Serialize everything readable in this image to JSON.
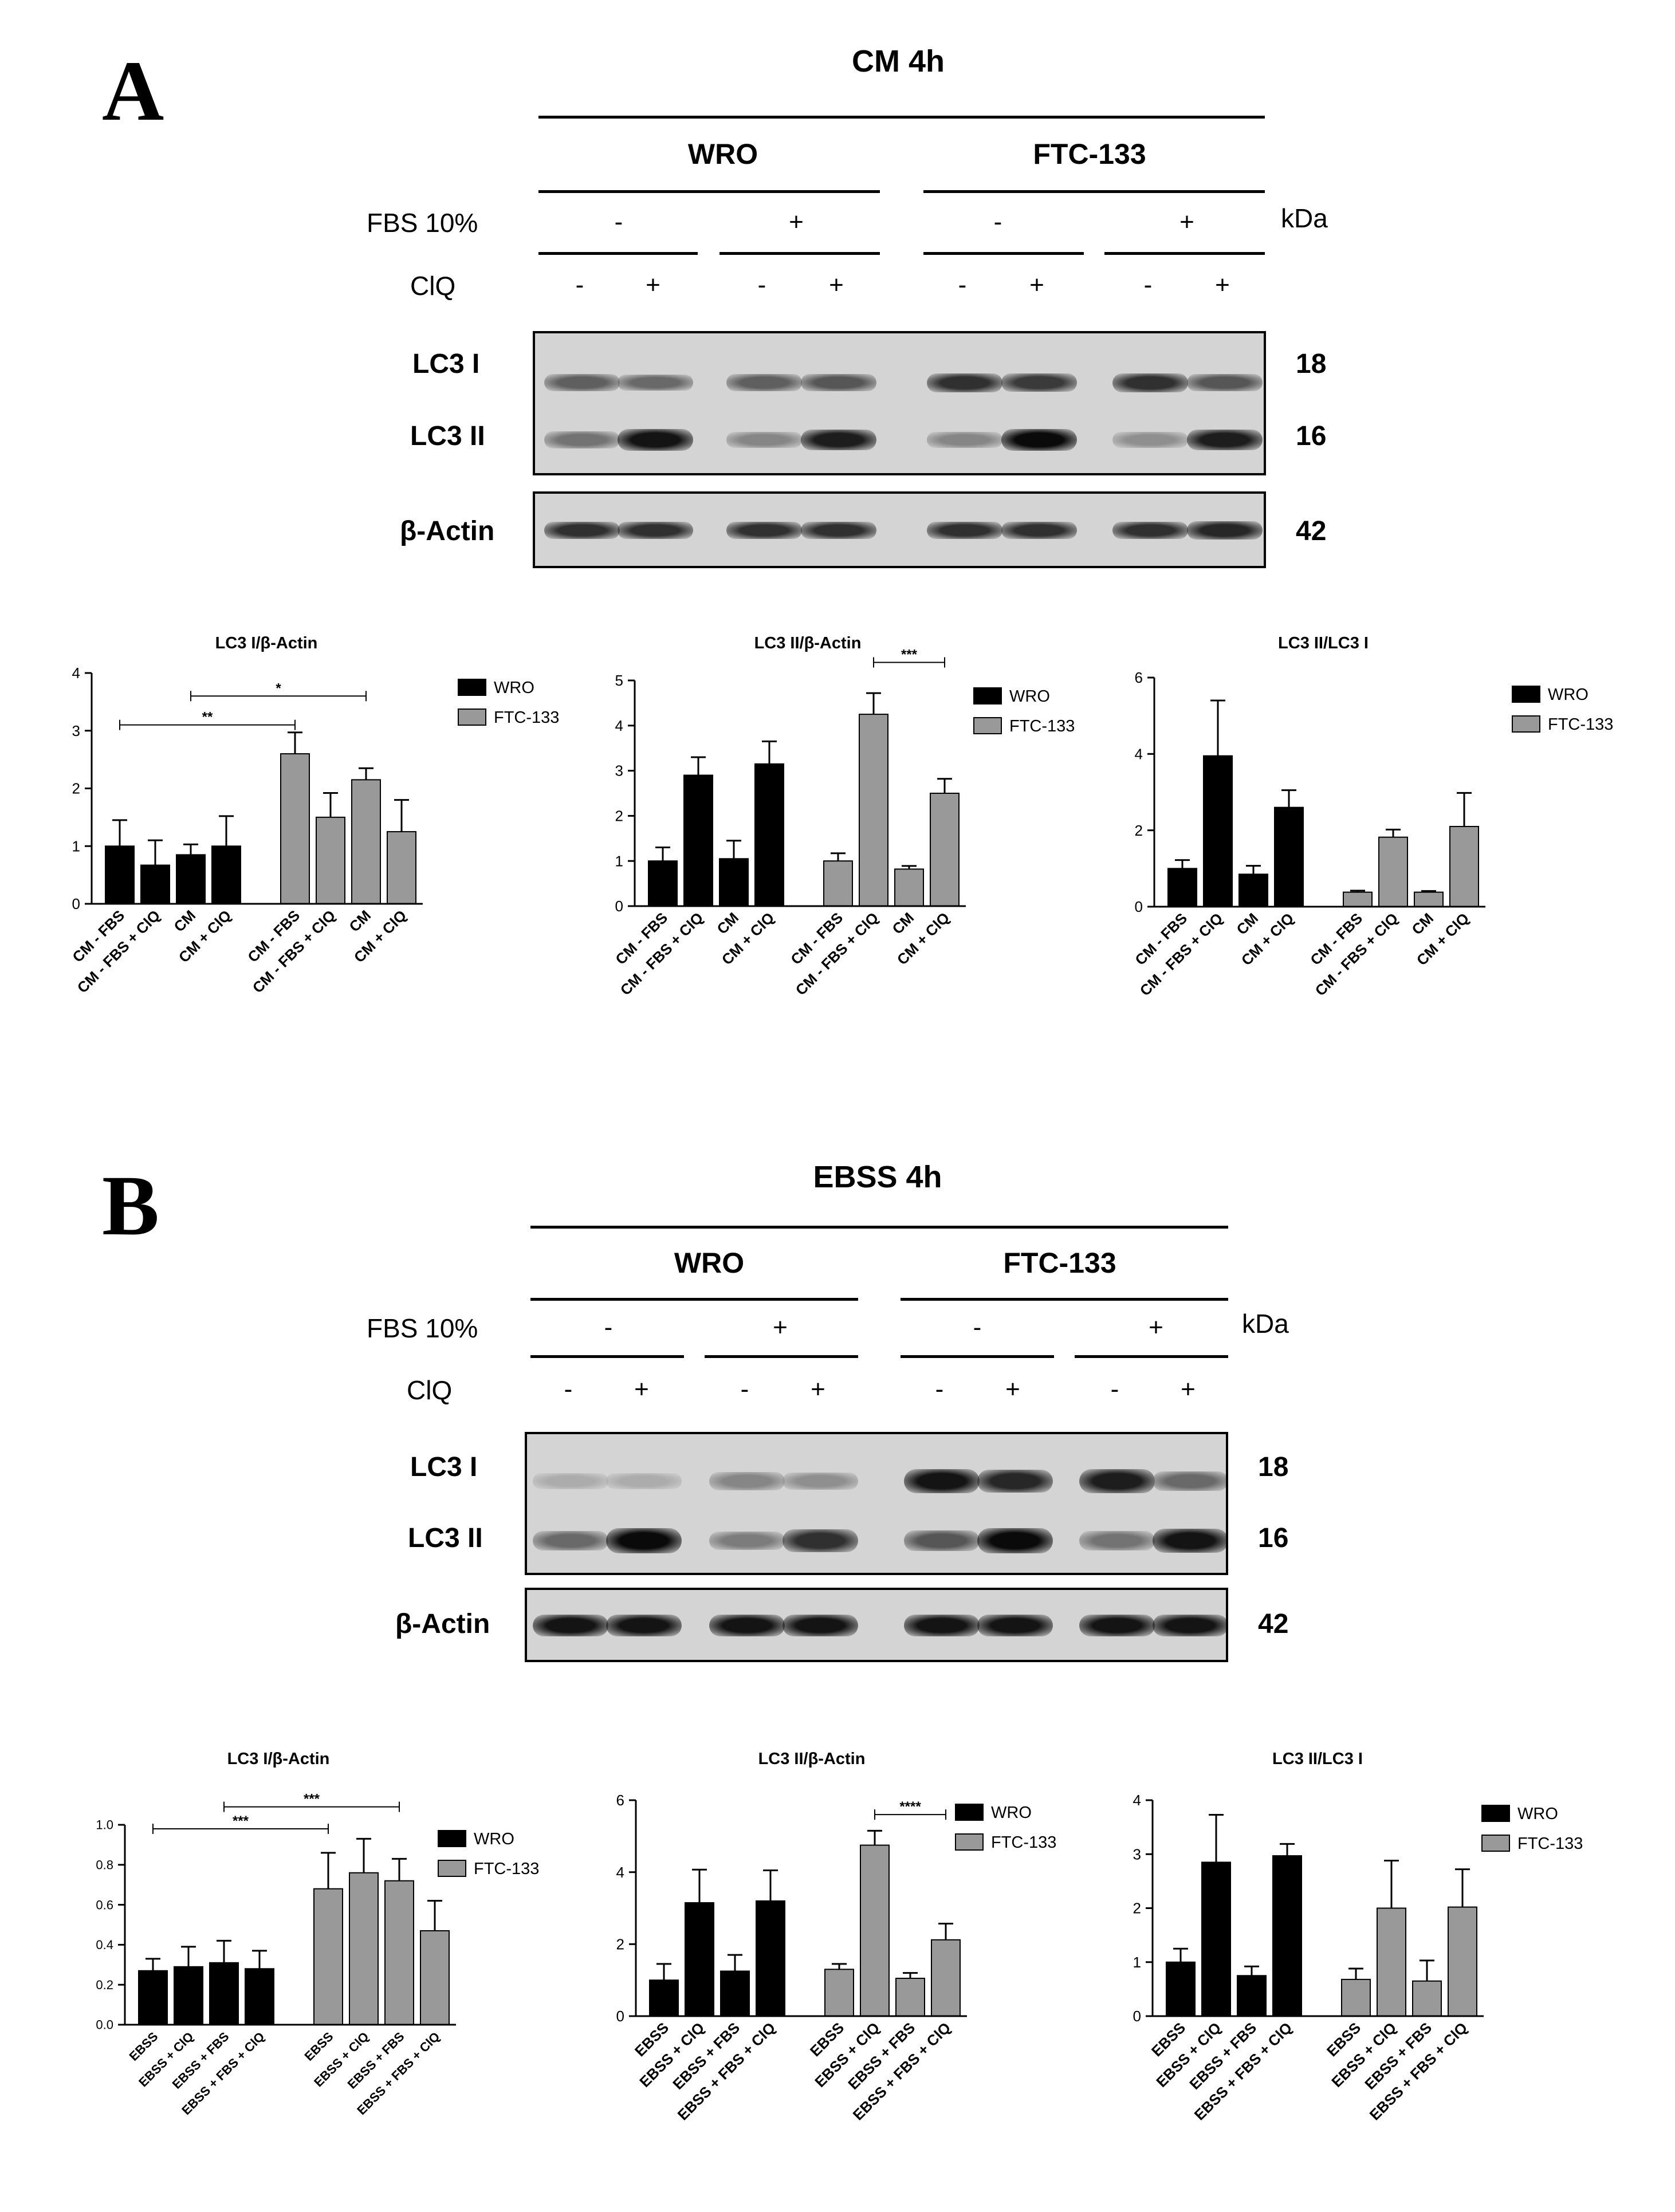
{
  "panels": [
    {
      "letter": "A",
      "condition": "CM 4h",
      "groups": [
        "WRO",
        "FTC-133"
      ],
      "fbs_label": "FBS 10%",
      "fbs_signs": [
        "-",
        "+",
        "-",
        "+"
      ],
      "kda_label": "kDa",
      "clq_label": "ClQ",
      "clq_signs": [
        "-",
        "+",
        "-",
        "+",
        "-",
        "+",
        "-",
        "+"
      ],
      "bands": [
        {
          "label": "LC3 I",
          "kda": "18"
        },
        {
          "label": "LC3 II",
          "kda": "16"
        },
        {
          "label": "β-Actin",
          "kda": "42"
        }
      ],
      "band_intensity": {
        "lc3_i": [
          0.55,
          0.5,
          0.55,
          0.6,
          0.8,
          0.75,
          0.8,
          0.6
        ],
        "lc3_ii": [
          0.45,
          0.95,
          0.35,
          0.9,
          0.35,
          1.0,
          0.3,
          0.9
        ],
        "actin": [
          0.8,
          0.8,
          0.8,
          0.8,
          0.8,
          0.8,
          0.8,
          0.85
        ]
      }
    },
    {
      "letter": "B",
      "condition": "EBSS 4h",
      "groups": [
        "WRO",
        "FTC-133"
      ],
      "fbs_label": "FBS 10%",
      "fbs_signs": [
        "-",
        "+",
        "-",
        "+"
      ],
      "kda_label": "kDa",
      "clq_label": "ClQ",
      "clq_signs": [
        "-",
        "+",
        "-",
        "+",
        "-",
        "+",
        "-",
        "+"
      ],
      "bands": [
        {
          "label": "LC3 I",
          "kda": "18"
        },
        {
          "label": "LC3 II",
          "kda": "16"
        },
        {
          "label": "β-Actin",
          "kda": "42"
        }
      ],
      "band_intensity": {
        "lc3_i": [
          0.15,
          0.15,
          0.35,
          0.3,
          0.95,
          0.85,
          0.9,
          0.5
        ],
        "lc3_ii": [
          0.5,
          1.0,
          0.4,
          0.8,
          0.6,
          1.0,
          0.45,
          0.95
        ],
        "actin": [
          0.95,
          0.95,
          0.95,
          0.95,
          0.95,
          0.95,
          0.95,
          0.95
        ]
      }
    }
  ],
  "colors": {
    "WRO": "#000000",
    "FTC-133": "#999999",
    "blot_bg": "#d4d4d4"
  },
  "chart_data": [
    {
      "type": "bar",
      "title": "LC3 I/β-Actin",
      "categories": [
        "CM - FBS",
        "CM - FBS + ClQ",
        "CM",
        "CM + ClQ"
      ],
      "series": [
        {
          "name": "WRO",
          "values": [
            1.0,
            0.67,
            0.85,
            1.0
          ],
          "errors": [
            0.45,
            0.43,
            0.18,
            0.52
          ]
        },
        {
          "name": "FTC-133",
          "values": [
            2.6,
            1.5,
            2.15,
            1.25
          ],
          "errors": [
            0.37,
            0.42,
            0.2,
            0.55
          ]
        }
      ],
      "ylim": [
        0,
        4
      ],
      "yticks": [
        "0",
        "1",
        "2",
        "3",
        "4"
      ],
      "significance": [
        {
          "from": 0,
          "to": 4,
          "label": "**",
          "y": 3.1
        },
        {
          "from": 2,
          "to": 6,
          "label": "*",
          "y": 3.6
        }
      ]
    },
    {
      "type": "bar",
      "title": "LC3 II/β-Actin",
      "categories": [
        "CM - FBS",
        "CM - FBS + ClQ",
        "CM",
        "CM + ClQ"
      ],
      "series": [
        {
          "name": "WRO",
          "values": [
            1.0,
            2.9,
            1.05,
            3.15
          ],
          "errors": [
            0.3,
            0.4,
            0.4,
            0.5
          ]
        },
        {
          "name": "FTC-133",
          "values": [
            1.0,
            4.25,
            0.82,
            2.5
          ],
          "errors": [
            0.17,
            0.47,
            0.07,
            0.32
          ]
        }
      ],
      "ylim": [
        0,
        5
      ],
      "yticks": [
        "0",
        "1",
        "2",
        "3",
        "4",
        "5"
      ],
      "significance": [
        {
          "from": 5,
          "to": 7,
          "label": "***",
          "y": 5.4
        }
      ]
    },
    {
      "type": "bar",
      "title": "LC3 II/LC3 I",
      "categories": [
        "CM - FBS",
        "CM - FBS + ClQ",
        "CM",
        "CM + ClQ"
      ],
      "series": [
        {
          "name": "WRO",
          "values": [
            1.0,
            3.95,
            0.85,
            2.6
          ],
          "errors": [
            0.22,
            1.45,
            0.22,
            0.45
          ]
        },
        {
          "name": "FTC-133",
          "values": [
            0.38,
            1.82,
            0.38,
            2.1
          ],
          "errors": [
            0.04,
            0.2,
            0.03,
            0.88
          ]
        }
      ],
      "ylim": [
        0,
        6
      ],
      "yticks": [
        "0",
        "2",
        "4",
        "6"
      ],
      "significance": []
    },
    {
      "type": "bar",
      "title": "LC3 I/β-Actin",
      "categories": [
        "EBSS",
        "EBSS + ClQ",
        "EBSS + FBS",
        "EBSS + FBS + ClQ"
      ],
      "series": [
        {
          "name": "WRO",
          "values": [
            0.27,
            0.29,
            0.31,
            0.28
          ],
          "errors": [
            0.06,
            0.1,
            0.11,
            0.09
          ]
        },
        {
          "name": "FTC-133",
          "values": [
            0.68,
            0.76,
            0.72,
            0.47
          ],
          "errors": [
            0.18,
            0.17,
            0.11,
            0.15
          ]
        }
      ],
      "ylim": [
        0,
        1.0
      ],
      "yticks": [
        "0.0",
        "0.2",
        "0.4",
        "0.6",
        "0.8",
        "1.0"
      ],
      "significance": [
        {
          "from": 0,
          "to": 4,
          "label": "***",
          "y": 0.98
        },
        {
          "from": 2,
          "to": 6,
          "label": "***",
          "y": 1.09
        }
      ]
    },
    {
      "type": "bar",
      "title": "LC3 II/β-Actin",
      "categories": [
        "EBSS",
        "EBSS + ClQ",
        "EBSS + FBS",
        "EBSS + FBS + ClQ"
      ],
      "series": [
        {
          "name": "WRO",
          "values": [
            1.0,
            3.15,
            1.25,
            3.2
          ],
          "errors": [
            0.45,
            0.92,
            0.45,
            0.85
          ]
        },
        {
          "name": "FTC-133",
          "values": [
            1.3,
            4.75,
            1.05,
            2.12
          ],
          "errors": [
            0.15,
            0.4,
            0.15,
            0.45
          ]
        }
      ],
      "ylim": [
        0,
        6
      ],
      "yticks": [
        "0",
        "2",
        "4",
        "6"
      ],
      "significance": [
        {
          "from": 5,
          "to": 7,
          "label": "****",
          "y": 5.6
        }
      ]
    },
    {
      "type": "bar",
      "title": "LC3 II/LC3 I",
      "categories": [
        "EBSS",
        "EBSS + ClQ",
        "EBSS + FBS",
        "EBSS + FBS + ClQ"
      ],
      "series": [
        {
          "name": "WRO",
          "values": [
            1.0,
            2.85,
            0.75,
            2.97
          ],
          "errors": [
            0.25,
            0.88,
            0.17,
            0.22
          ]
        },
        {
          "name": "FTC-133",
          "values": [
            0.68,
            2.0,
            0.65,
            2.02
          ],
          "errors": [
            0.2,
            0.88,
            0.38,
            0.7
          ]
        }
      ],
      "ylim": [
        0,
        4
      ],
      "yticks": [
        "0",
        "1",
        "2",
        "3",
        "4"
      ],
      "significance": []
    }
  ]
}
